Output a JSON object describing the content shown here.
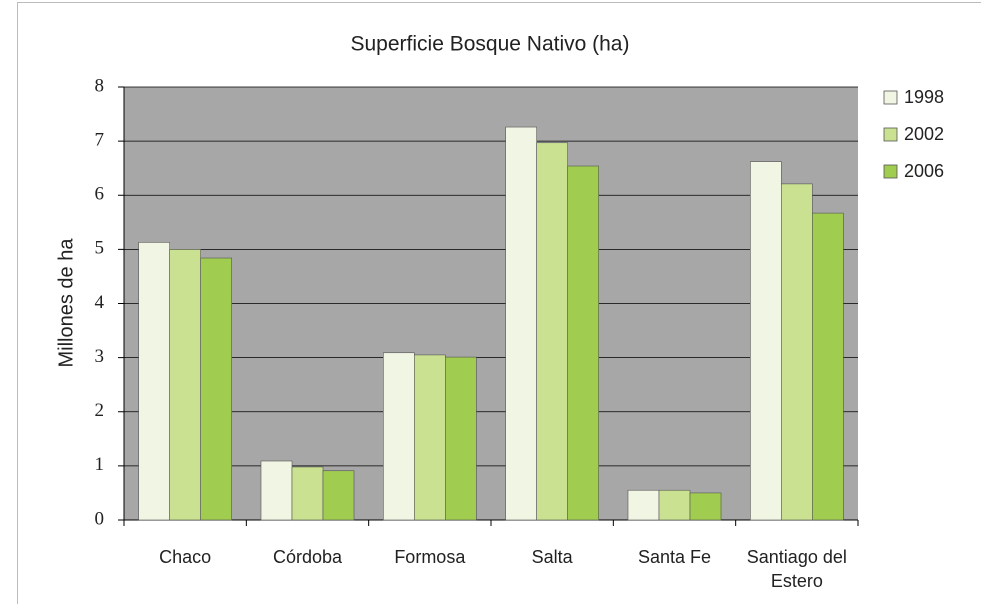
{
  "chart_data": {
    "type": "bar",
    "title": "Superficie Bosque Nativo (ha)",
    "y_label": "Millones de ha",
    "categories": [
      "Chaco",
      "Córdoba",
      "Formosa",
      "Salta",
      "Santa Fe",
      "Santiago del Estero"
    ],
    "series": [
      {
        "name": "1998",
        "color": "#f1f5e3",
        "values": [
          5.13,
          1.09,
          3.09,
          7.26,
          0.55,
          6.62
        ]
      },
      {
        "name": "2002",
        "color": "#c9e190",
        "values": [
          5.0,
          0.98,
          3.05,
          6.97,
          0.55,
          6.21
        ]
      },
      {
        "name": "2006",
        "color": "#a0cc50",
        "values": [
          4.84,
          0.91,
          3.01,
          6.54,
          0.5,
          5.67
        ]
      }
    ],
    "ylim": [
      0,
      8
    ],
    "yticks": [
      0,
      1,
      2,
      3,
      4,
      5,
      6,
      7,
      8
    ],
    "grid": true,
    "legend": "right",
    "plot_background": "#a7a7a7"
  }
}
